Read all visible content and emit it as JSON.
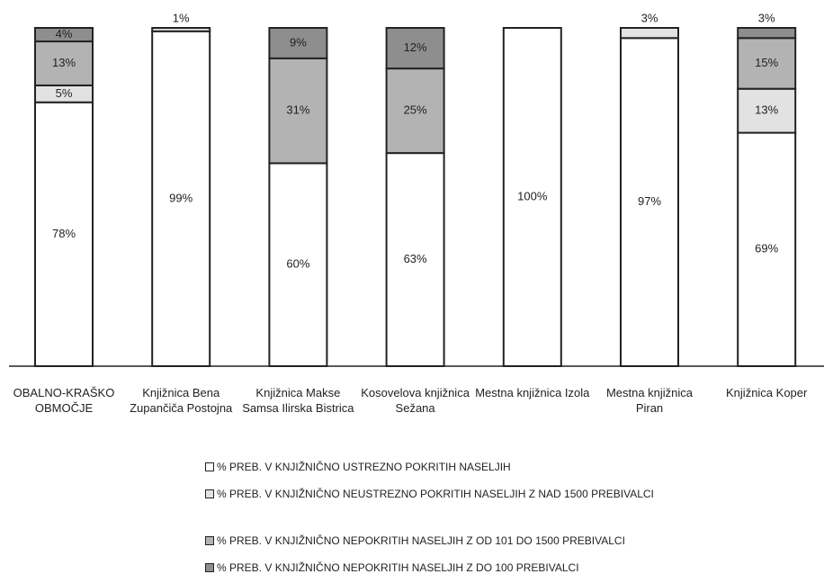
{
  "chart_data": {
    "type": "stacked_bar",
    "categories": [
      "OBALNO-KRAŠKO OBMOČJE",
      "Knjižnica Bena Zupančiča Postojna",
      "Knjižnica Makse Samsa Ilirska Bistrica",
      "Kosovelova knjižnica Sežana",
      "Mestna knjižnica Izola",
      "Mestna knjižnica Piran",
      "Knjižnica Koper"
    ],
    "series": [
      {
        "name": "% PREB. V KNJIŽNIČNO USTREZNO POKRITIH NASELJIH",
        "color": "#ffffff",
        "values": [
          78,
          99,
          60,
          63,
          100,
          97,
          69
        ],
        "value_labels": [
          "78%",
          "99%",
          "60%",
          "63%",
          "100%",
          "97%",
          "69%"
        ]
      },
      {
        "name": "% PREB. V KNJIŽNIČNO NEUSTREZNO POKRITIH NASELJIH Z NAD 1500 PREBIVALCI",
        "color": "#e2e2e2",
        "values": [
          5,
          1,
          0,
          0,
          0,
          3,
          13
        ],
        "value_labels": [
          "5%",
          "1%",
          null,
          null,
          null,
          "3%",
          "13%"
        ]
      },
      {
        "name": "% PREB. V KNJIŽNIČNO NEPOKRITIH NASELJIH Z OD 101 DO 1500 PREBIVALCI",
        "color": "#b3b3b3",
        "values": [
          13,
          0,
          31,
          25,
          0,
          0,
          15
        ],
        "value_labels": [
          "13%",
          null,
          "31%",
          "25%",
          null,
          null,
          "15%"
        ]
      },
      {
        "name": "% PREB. V KNJIŽNIČNO NEPOKRITIH NASELJIH Z DO 100 PREBIVALCI",
        "color": "#8e8e8e",
        "values": [
          4,
          0,
          9,
          12,
          0,
          0,
          3
        ],
        "value_labels": [
          "4%",
          null,
          "9%",
          "12%",
          null,
          null,
          "3%"
        ]
      }
    ],
    "ylim": [
      0,
      100
    ]
  }
}
